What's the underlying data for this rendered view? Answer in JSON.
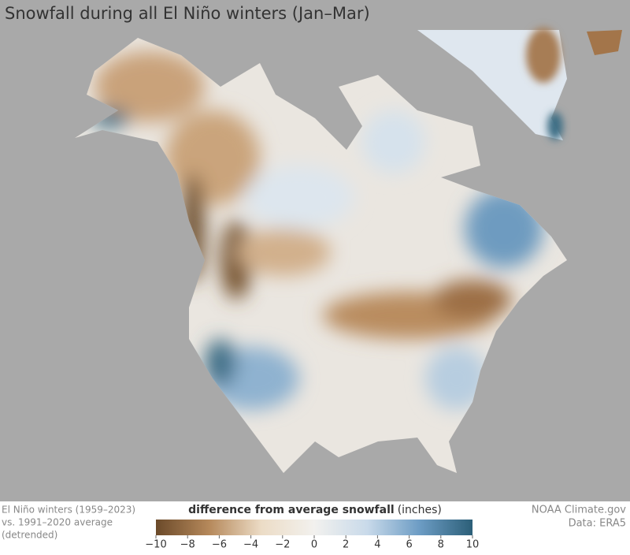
{
  "title": "Snowfall during all El Niño winters (Jan–Mar)",
  "notes": [
    "El Niño winters (1959–2023)",
    "vs. 1991–2020 average",
    "(detrended)"
  ],
  "legend": {
    "title": "difference from average snowfall",
    "unit": "(inches)",
    "colors": [
      "#6b4a2a",
      "#b5885a",
      "#ecdcc6",
      "#f2f1ee",
      "#c9daea",
      "#6c9cc4",
      "#2c5f78"
    ],
    "ticks": [
      {
        "value": -10,
        "label": "−10"
      },
      {
        "value": -8,
        "label": "−8"
      },
      {
        "value": -6,
        "label": "−6"
      },
      {
        "value": -4,
        "label": "−4"
      },
      {
        "value": -2,
        "label": "−2"
      },
      0,
      2,
      4,
      6,
      8,
      10
    ]
  },
  "credits": [
    "NOAA Climate.gov",
    "Data: ERA5"
  ]
}
